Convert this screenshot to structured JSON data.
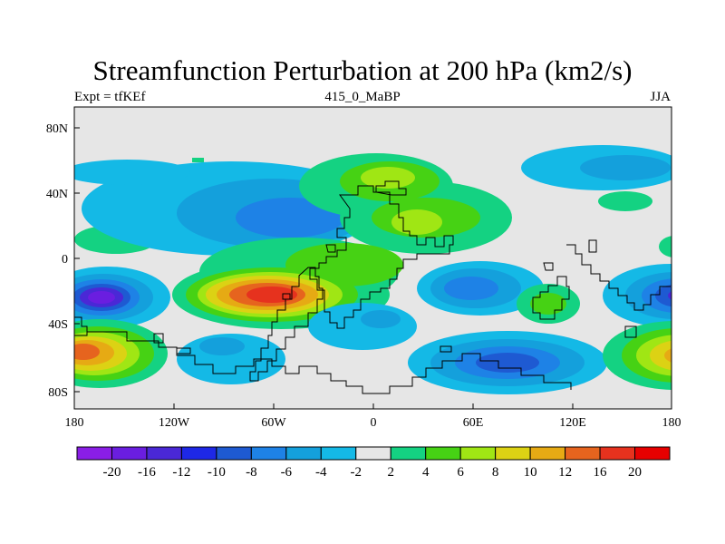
{
  "title": "Streamfunction Perturbation at 200 hPa (km2/s)",
  "subtitle_left": "Expt = tfKEf",
  "subtitle_center": "415_0_MaBP",
  "subtitle_right": "JJA",
  "map": {
    "projection": "cylindrical equidistant",
    "lon_range": [
      -180,
      180
    ],
    "lat_range": [
      -90,
      90
    ],
    "x_tick_labels": [
      "180",
      "120W",
      "60W",
      "0",
      "60E",
      "120E",
      "180"
    ],
    "y_tick_labels": [
      "80N",
      "40N",
      "0",
      "40S",
      "80S"
    ],
    "background_color": "#e6e6e6",
    "coastline_color": "#000000"
  },
  "colorbar": {
    "labels": [
      "-20",
      "-16",
      "-12",
      "-10",
      "-8",
      "-6",
      "-4",
      "-2",
      "2",
      "4",
      "6",
      "8",
      "10",
      "12",
      "16",
      "20"
    ],
    "colors": [
      "#8a1ee6",
      "#6a1ee0",
      "#4a28d6",
      "#1e28e6",
      "#1e5ad2",
      "#1e82e6",
      "#14a0dc",
      "#14b9e6",
      "#e6e6e6",
      "#14d282",
      "#46d214",
      "#a0e614",
      "#dcd214",
      "#e6aa14",
      "#e6641e",
      "#e6321e",
      "#e60000"
    ]
  }
}
